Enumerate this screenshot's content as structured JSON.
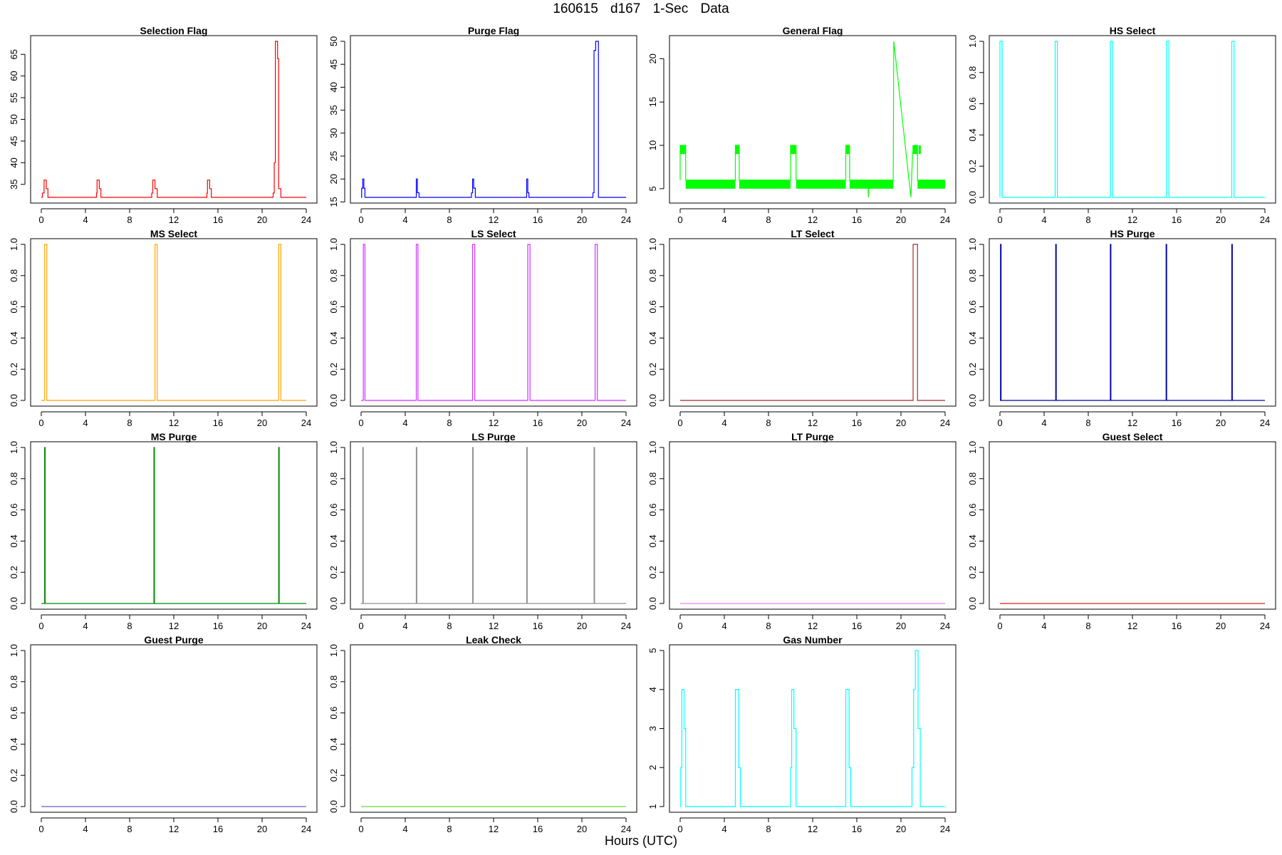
{
  "figure": {
    "title": "160615   d167   1-Sec Data",
    "xlabel": "Hours (UTC)"
  },
  "chart_data": [
    {
      "type": "line",
      "title": "Selection Flag",
      "color": "#ff0000",
      "xlim": [
        0,
        24
      ],
      "ylim": [
        32,
        68
      ],
      "xticks": [
        0,
        4,
        8,
        12,
        16,
        20,
        24
      ],
      "yticks": [
        35,
        40,
        45,
        50,
        55,
        60,
        65
      ],
      "x": [
        0,
        0.1,
        0.1,
        0.25,
        0.25,
        0.45,
        0.45,
        0.6,
        0.6,
        5.0,
        5.0,
        5.05,
        5.05,
        5.25,
        5.25,
        5.4,
        5.4,
        10.0,
        10.0,
        10.1,
        10.1,
        10.3,
        10.3,
        10.5,
        10.5,
        15.0,
        15.0,
        15.05,
        15.05,
        15.25,
        15.25,
        15.4,
        15.4,
        21.0,
        21.0,
        21.1,
        21.1,
        21.2,
        21.2,
        21.4,
        21.4,
        21.5,
        21.5,
        21.7,
        21.7,
        24
      ],
      "y": [
        32,
        32,
        33,
        33,
        36,
        36,
        34,
        34,
        32,
        32,
        33,
        33,
        36,
        36,
        34,
        34,
        32,
        32,
        33,
        33,
        36,
        36,
        34,
        34,
        32,
        32,
        33,
        33,
        36,
        36,
        34,
        34,
        32,
        32,
        33,
        33,
        40,
        40,
        68,
        68,
        64,
        64,
        34,
        34,
        32,
        32
      ]
    },
    {
      "type": "line",
      "title": "Purge Flag",
      "color": "#0000ff",
      "xlim": [
        0,
        24
      ],
      "ylim": [
        16,
        50
      ],
      "xticks": [
        0,
        4,
        8,
        12,
        16,
        20,
        24
      ],
      "yticks": [
        15,
        20,
        25,
        30,
        35,
        40,
        45,
        50
      ],
      "x": [
        0,
        0.05,
        0.05,
        0.15,
        0.15,
        0.25,
        0.25,
        0.35,
        0.35,
        5.0,
        5.0,
        5.1,
        5.1,
        5.25,
        5.25,
        10.0,
        10.0,
        10.1,
        10.1,
        10.2,
        10.2,
        10.35,
        10.35,
        15.0,
        15.0,
        15.1,
        15.1,
        15.2,
        15.2,
        21.0,
        21.0,
        21.1,
        21.1,
        21.25,
        21.25,
        21.5,
        21.5,
        24
      ],
      "y": [
        16,
        16,
        18,
        18,
        20,
        20,
        18,
        18,
        16,
        16,
        20,
        20,
        17,
        17,
        16,
        16,
        17,
        17,
        20,
        20,
        18,
        18,
        16,
        16,
        20,
        20,
        17,
        17,
        16,
        16,
        17,
        17,
        48,
        48,
        50,
        50,
        16,
        16
      ]
    },
    {
      "type": "line",
      "title": "General Flag",
      "color": "#00ff00",
      "xlim": [
        0,
        24
      ],
      "ylim": [
        4,
        22
      ],
      "xticks": [
        0,
        4,
        8,
        12,
        16,
        20,
        24
      ],
      "yticks": [
        5,
        10,
        15,
        20
      ],
      "bands": [
        {
          "x0": 0,
          "x1": 0.5,
          "y0": 9,
          "y1": 10
        },
        {
          "x0": 0.5,
          "x1": 5.0,
          "y0": 5,
          "y1": 6
        },
        {
          "x0": 5.0,
          "x1": 5.35,
          "y0": 9,
          "y1": 10
        },
        {
          "x0": 5.35,
          "x1": 10.0,
          "y0": 5,
          "y1": 6
        },
        {
          "x0": 10.0,
          "x1": 10.5,
          "y0": 9,
          "y1": 10
        },
        {
          "x0": 10.5,
          "x1": 15.0,
          "y0": 5,
          "y1": 6
        },
        {
          "x0": 15.0,
          "x1": 15.35,
          "y0": 9,
          "y1": 10
        },
        {
          "x0": 15.35,
          "x1": 19.3,
          "y0": 5,
          "y1": 6
        },
        {
          "x0": 21.05,
          "x1": 21.5,
          "y0": 9,
          "y1": 10
        },
        {
          "x0": 21.6,
          "x1": 21.8,
          "y0": 9,
          "y1": 10
        },
        {
          "x0": 21.5,
          "x1": 24,
          "y0": 5,
          "y1": 6
        }
      ],
      "x": [
        0,
        0,
        0.5,
        0.5,
        5.0,
        5.0,
        5.35,
        5.35,
        10.0,
        10.0,
        10.5,
        10.5,
        15.0,
        15.0,
        15.35,
        15.35,
        17.0,
        17.05,
        17.1,
        19.3,
        19.35,
        20.9,
        21.05,
        21.2,
        21.5,
        21.5,
        24
      ],
      "y": [
        6,
        10,
        10,
        6,
        6,
        10,
        10,
        6,
        6,
        10,
        10,
        6,
        6,
        10,
        10,
        6,
        6,
        4,
        6,
        6,
        22,
        4,
        9,
        10,
        10,
        6,
        6
      ]
    },
    {
      "type": "line",
      "title": "HS Select",
      "color": "#00ffff",
      "xlim": [
        0,
        24
      ],
      "ylim": [
        0,
        1
      ],
      "xticks": [
        0,
        4,
        8,
        12,
        16,
        20,
        24
      ],
      "yticks": [
        0.0,
        0.2,
        0.4,
        0.6,
        0.8,
        1.0
      ],
      "pulses": [
        [
          0.0,
          0.2
        ],
        [
          5.0,
          5.2
        ],
        [
          10.0,
          10.2
        ],
        [
          15.1,
          15.3
        ],
        [
          21.0,
          21.2
        ]
      ]
    },
    {
      "type": "line",
      "title": "MS Select",
      "color": "#ffa500",
      "xlim": [
        0,
        24
      ],
      "ylim": [
        0,
        1
      ],
      "xticks": [
        0,
        4,
        8,
        12,
        16,
        20,
        24
      ],
      "yticks": [
        0.0,
        0.2,
        0.4,
        0.6,
        0.8,
        1.0
      ],
      "pulses": [
        [
          0.3,
          0.5
        ],
        [
          10.3,
          10.5
        ],
        [
          21.5,
          21.7
        ]
      ]
    },
    {
      "type": "line",
      "title": "LS Select",
      "color": "#cc33ff",
      "xlim": [
        0,
        24
      ],
      "ylim": [
        0,
        1
      ],
      "xticks": [
        0,
        4,
        8,
        12,
        16,
        20,
        24
      ],
      "yticks": [
        0.0,
        0.2,
        0.4,
        0.6,
        0.8,
        1.0
      ],
      "pulses": [
        [
          0.2,
          0.35
        ],
        [
          5.0,
          5.15
        ],
        [
          10.1,
          10.3
        ],
        [
          15.1,
          15.3
        ],
        [
          21.2,
          21.4
        ]
      ]
    },
    {
      "type": "line",
      "title": "LT Select",
      "color": "#a52a2a",
      "xlim": [
        0,
        24
      ],
      "ylim": [
        0,
        1
      ],
      "xticks": [
        0,
        4,
        8,
        12,
        16,
        20,
        24
      ],
      "yticks": [
        0.0,
        0.2,
        0.4,
        0.6,
        0.8,
        1.0
      ],
      "pulses": [
        [
          21.1,
          21.5
        ]
      ]
    },
    {
      "type": "line",
      "title": "HS Purge",
      "color": "#0000aa",
      "xlim": [
        0,
        24
      ],
      "ylim": [
        0,
        1
      ],
      "xticks": [
        0,
        4,
        8,
        12,
        16,
        20,
        24
      ],
      "yticks": [
        0.0,
        0.2,
        0.4,
        0.6,
        0.8,
        1.0
      ],
      "pulses": [
        [
          0.05,
          0.1
        ],
        [
          5.05,
          5.1
        ],
        [
          10.0,
          10.05
        ],
        [
          15.05,
          15.1
        ],
        [
          21.0,
          21.05
        ]
      ]
    },
    {
      "type": "line",
      "title": "MS Purge",
      "color": "#008800",
      "xlim": [
        0,
        24
      ],
      "ylim": [
        0,
        1
      ],
      "xticks": [
        0,
        4,
        8,
        12,
        16,
        20,
        24
      ],
      "yticks": [
        0.0,
        0.2,
        0.4,
        0.6,
        0.8,
        1.0
      ],
      "pulses": [
        [
          0.3,
          0.35
        ],
        [
          10.2,
          10.25
        ],
        [
          21.5,
          21.55
        ]
      ]
    },
    {
      "type": "line",
      "title": "LS Purge",
      "color": "#909090",
      "xlim": [
        0,
        24
      ],
      "ylim": [
        0,
        1
      ],
      "xticks": [
        0,
        4,
        8,
        12,
        16,
        20,
        24
      ],
      "yticks": [
        0.0,
        0.2,
        0.4,
        0.6,
        0.8,
        1.0
      ],
      "pulses": [
        [
          0.15,
          0.2
        ],
        [
          5.0,
          5.05
        ],
        [
          10.1,
          10.15
        ],
        [
          15.0,
          15.05
        ],
        [
          21.1,
          21.15
        ]
      ]
    },
    {
      "type": "line",
      "title": "LT Purge",
      "color": "#ee82ee",
      "xlim": [
        0,
        24
      ],
      "ylim": [
        0,
        1
      ],
      "xticks": [
        0,
        4,
        8,
        12,
        16,
        20,
        24
      ],
      "yticks": [
        0.0,
        0.2,
        0.4,
        0.6,
        0.8,
        1.0
      ],
      "pulses": []
    },
    {
      "type": "line",
      "title": "Guest Select",
      "color": "#dd2222",
      "xlim": [
        0,
        24
      ],
      "ylim": [
        0,
        1
      ],
      "xticks": [
        0,
        4,
        8,
        12,
        16,
        20,
        24
      ],
      "yticks": [
        0.0,
        0.2,
        0.4,
        0.6,
        0.8,
        1.0
      ],
      "pulses": []
    },
    {
      "type": "line",
      "title": "Guest Purge",
      "color": "#6a5acd",
      "xlim": [
        0,
        24
      ],
      "ylim": [
        0,
        1
      ],
      "xticks": [
        0,
        4,
        8,
        12,
        16,
        20,
        24
      ],
      "yticks": [
        0.0,
        0.2,
        0.4,
        0.6,
        0.8,
        1.0
      ],
      "pulses": []
    },
    {
      "type": "line",
      "title": "Leak Check",
      "color": "#66dd33",
      "xlim": [
        0,
        24
      ],
      "ylim": [
        0,
        1
      ],
      "xticks": [
        0,
        4,
        8,
        12,
        16,
        20,
        24
      ],
      "yticks": [
        0.0,
        0.2,
        0.4,
        0.6,
        0.8,
        1.0
      ],
      "pulses": []
    },
    {
      "type": "line",
      "title": "Gas Number",
      "color": "#00ffff",
      "xlim": [
        0,
        24
      ],
      "ylim": [
        1,
        5
      ],
      "xticks": [
        0,
        4,
        8,
        12,
        16,
        20,
        24
      ],
      "yticks": [
        1,
        2,
        3,
        4,
        5
      ],
      "x": [
        0,
        0.05,
        0.05,
        0.15,
        0.15,
        0.35,
        0.35,
        0.5,
        0.5,
        5.0,
        5.0,
        5.3,
        5.3,
        5.45,
        5.45,
        10.0,
        10.0,
        10.1,
        10.1,
        10.3,
        10.3,
        10.5,
        10.5,
        15.0,
        15.0,
        15.3,
        15.3,
        15.45,
        15.45,
        21.0,
        21.0,
        21.15,
        21.15,
        21.3,
        21.3,
        21.55,
        21.55,
        21.75,
        21.75,
        24
      ],
      "y": [
        1,
        1,
        2,
        2,
        4,
        4,
        3,
        3,
        1,
        1,
        4,
        4,
        2,
        2,
        1,
        1,
        2,
        2,
        4,
        4,
        3,
        3,
        1,
        1,
        4,
        4,
        2,
        2,
        1,
        1,
        2,
        2,
        4,
        4,
        5,
        5,
        3,
        3,
        1,
        1
      ]
    }
  ]
}
